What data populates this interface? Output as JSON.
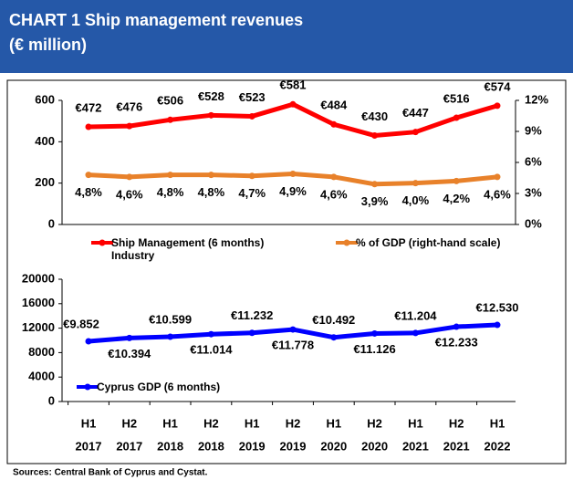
{
  "title": "CHART 1  Ship management revenues",
  "subtitle": "(€ million)",
  "source": "Sources: Central Bank of Cyprus and Cystat.",
  "chart_data": [
    {
      "type": "line",
      "ylim": [
        0,
        600
      ],
      "yticks": [
        0,
        200,
        400,
        600
      ],
      "y2lim": [
        0,
        12
      ],
      "y2ticks": [
        {
          "value": 0,
          "label": "0%"
        },
        {
          "value": 3,
          "label": "3%"
        },
        {
          "value": 6,
          "label": "6%"
        },
        {
          "value": 9,
          "label": "9%"
        },
        {
          "value": 12,
          "label": "12%"
        }
      ],
      "series": [
        {
          "name": "Ship Management (6 months) Industry",
          "color": "#ff0000",
          "values": [
            472,
            476,
            506,
            528,
            523,
            581,
            484,
            430,
            447,
            516,
            574
          ],
          "value_labels": [
            "€472",
            "€476",
            "€506",
            "€528",
            "€523",
            "€581",
            "€484",
            "€430",
            "€447",
            "€516",
            "€574"
          ]
        },
        {
          "name": "% of GDP (right-hand scale)",
          "color": "#e8812a",
          "axis": "y2",
          "values": [
            4.8,
            4.6,
            4.8,
            4.8,
            4.7,
            4.9,
            4.6,
            3.9,
            4.0,
            4.2,
            4.6
          ],
          "value_labels": [
            "4,8%",
            "4,6%",
            "4,8%",
            "4,8%",
            "4,7%",
            "4,9%",
            "4,6%",
            "3,9%",
            "4,0%",
            "4,2%",
            "4,6%"
          ]
        }
      ]
    },
    {
      "type": "line",
      "categories": [
        [
          "H1",
          "2017"
        ],
        [
          "H2",
          "2017"
        ],
        [
          "H1",
          "2018"
        ],
        [
          "H2",
          "2018"
        ],
        [
          "H1",
          "2019"
        ],
        [
          "H2",
          "2019"
        ],
        [
          "H1",
          "2020"
        ],
        [
          "H2",
          "2020"
        ],
        [
          "H1",
          "2021"
        ],
        [
          "H2",
          "2021"
        ],
        [
          "H1",
          "2022"
        ]
      ],
      "ylim": [
        0,
        20000
      ],
      "yticks": [
        0,
        4000,
        8000,
        12000,
        16000,
        20000
      ],
      "series": [
        {
          "name": "Cyprus GDP (6 months)",
          "color": "#0000ff",
          "values": [
            9852,
            10394,
            10599,
            11014,
            11232,
            11778,
            10492,
            11126,
            11204,
            12233,
            12530
          ],
          "value_labels": [
            "€9.852",
            "€10.394",
            "€10.599",
            "€11.014",
            "€11.232",
            "€11.778",
            "€10.492",
            "€11.126",
            "€11.204",
            "€12.233",
            "€12.530"
          ]
        }
      ]
    }
  ]
}
